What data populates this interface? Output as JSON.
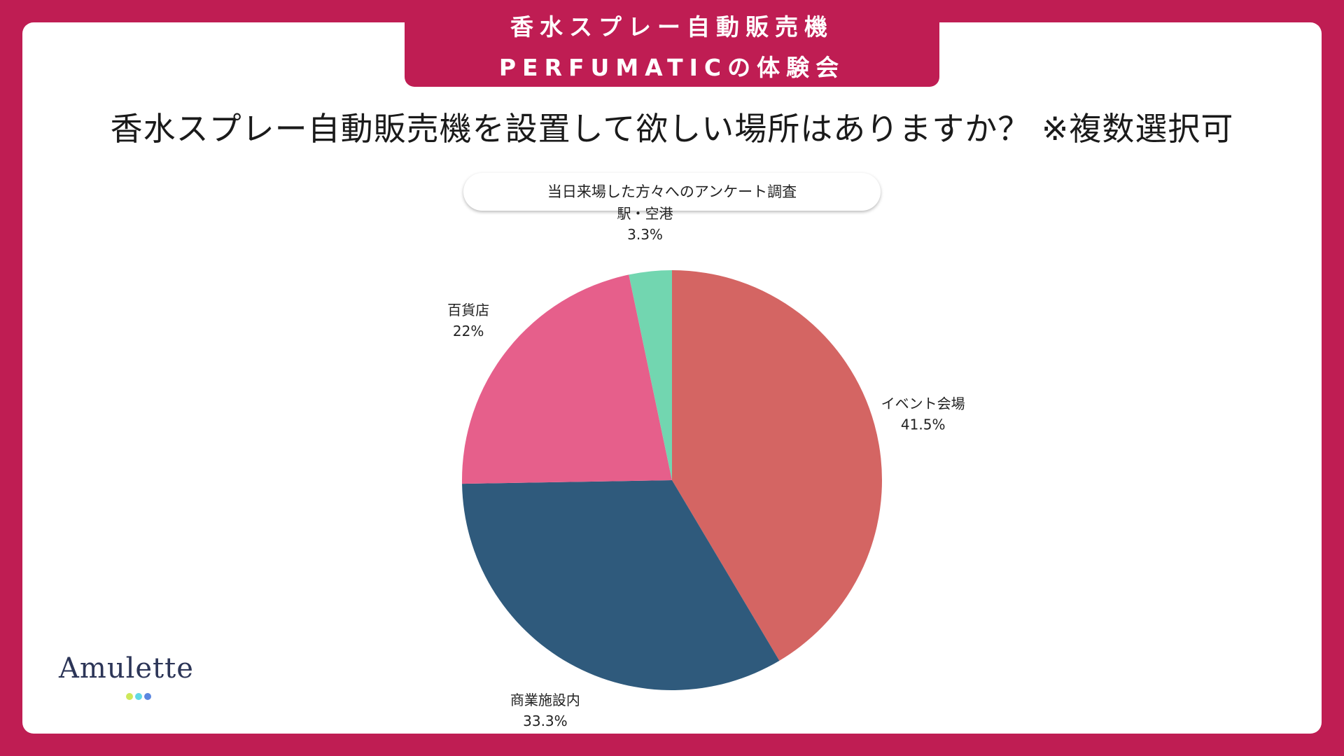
{
  "header": {
    "line1": "香水スプレー自動販売機",
    "line2": "PERFUMATICの体験会"
  },
  "question": "香水スプレー自動販売機を設置して欲しい場所はありますか？ ※複数選択可",
  "survey_note": "当日来場した方々へのアンケート調査",
  "logo": {
    "text": "Amulette",
    "dot_colors": [
      "#cde85a",
      "#5fd9e6",
      "#5b86e0"
    ]
  },
  "colors": {
    "background": "#bf1d53",
    "card": "#ffffff"
  },
  "chart_data": {
    "type": "pie",
    "title": "",
    "slices": [
      {
        "label": "イベント会場",
        "value": 41.5,
        "value_label": "41.5%",
        "color": "#d46563"
      },
      {
        "label": "商業施設内",
        "value": 33.3,
        "value_label": "33.3%",
        "color": "#2f5a7c"
      },
      {
        "label": "百貨店",
        "value": 22,
        "value_label": "22%",
        "color": "#e65f8b"
      },
      {
        "label": "駅・空港",
        "value": 3.3,
        "value_label": "3.3%",
        "color": "#72d6b0"
      }
    ],
    "start_angle": "12 o'clock",
    "direction": "clockwise",
    "legend": "none"
  }
}
